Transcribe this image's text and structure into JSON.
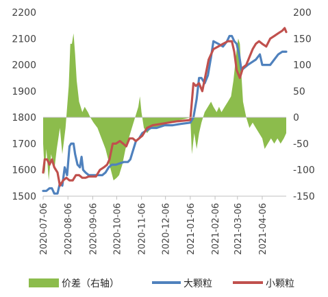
{
  "chart_data": {
    "type": "line",
    "title": "",
    "xlabel": "",
    "ylabel": "",
    "y_left": {
      "min": 1500,
      "max": 2200,
      "ticks": [
        1500,
        1600,
        1700,
        1800,
        1900,
        2000,
        2100,
        2200
      ]
    },
    "y_right": {
      "min": -150,
      "max": 200,
      "ticks": [
        -150,
        -100,
        -50,
        0,
        50,
        100,
        150,
        200
      ]
    },
    "x_range": [
      "2020-07-06",
      "2021-05-06"
    ],
    "x_ticks": [
      "2020-07-06",
      "2020-08-06",
      "2020-09-06",
      "2020-10-06",
      "2020-11-06",
      "2020-12-06",
      "2021-01-06",
      "2021-02-06",
      "2021-03-06",
      "2021-04-06"
    ],
    "legend": {
      "position": "bottom"
    },
    "colors": {
      "spread": "#8cbc4c",
      "large": "#4f81bd",
      "small": "#c0504d"
    },
    "series": [
      {
        "name": "价差（右轴）",
        "axis": "right",
        "kind": "area",
        "points": [
          [
            "2020-07-06",
            -50
          ],
          [
            "2020-07-08",
            -110
          ],
          [
            "2020-07-10",
            -60
          ],
          [
            "2020-07-13",
            -120
          ],
          [
            "2020-07-16",
            -70
          ],
          [
            "2020-07-20",
            -100
          ],
          [
            "2020-07-23",
            -60
          ],
          [
            "2020-07-27",
            -20
          ],
          [
            "2020-07-30",
            -70
          ],
          [
            "2020-08-03",
            -20
          ],
          [
            "2020-08-07",
            60
          ],
          [
            "2020-08-09",
            140
          ],
          [
            "2020-08-11",
            140
          ],
          [
            "2020-08-13",
            160
          ],
          [
            "2020-08-15",
            120
          ],
          [
            "2020-08-17",
            70
          ],
          [
            "2020-08-20",
            30
          ],
          [
            "2020-08-24",
            10
          ],
          [
            "2020-08-27",
            20
          ],
          [
            "2020-08-31",
            10
          ],
          [
            "2020-09-03",
            0
          ],
          [
            "2020-09-07",
            -10
          ],
          [
            "2020-09-12",
            -20
          ],
          [
            "2020-09-17",
            -40
          ],
          [
            "2020-09-22",
            -60
          ],
          [
            "2020-09-27",
            -90
          ],
          [
            "2020-10-02",
            -120
          ],
          [
            "2020-10-06",
            -115
          ],
          [
            "2020-10-09",
            -110
          ],
          [
            "2020-10-13",
            -90
          ],
          [
            "2020-10-17",
            -60
          ],
          [
            "2020-10-21",
            -40
          ],
          [
            "2020-10-25",
            -20
          ],
          [
            "2020-10-29",
            0
          ],
          [
            "2020-11-02",
            20
          ],
          [
            "2020-11-04",
            40
          ],
          [
            "2020-11-06",
            10
          ],
          [
            "2020-11-09",
            -20
          ],
          [
            "2020-11-13",
            -30
          ],
          [
            "2020-11-18",
            -20
          ],
          [
            "2020-11-25",
            -20
          ],
          [
            "2020-12-02",
            -15
          ],
          [
            "2020-12-09",
            -10
          ],
          [
            "2020-12-16",
            -8
          ],
          [
            "2020-12-23",
            -5
          ],
          [
            "2020-12-30",
            -3
          ],
          [
            "2021-01-06",
            0
          ],
          [
            "2021-01-08",
            -70
          ],
          [
            "2021-01-11",
            -30
          ],
          [
            "2021-01-14",
            -60
          ],
          [
            "2021-01-17",
            -30
          ],
          [
            "2021-01-20",
            -10
          ],
          [
            "2021-01-24",
            10
          ],
          [
            "2021-01-28",
            20
          ],
          [
            "2021-02-01",
            30
          ],
          [
            "2021-02-04",
            20
          ],
          [
            "2021-02-08",
            10
          ],
          [
            "2021-02-11",
            20
          ],
          [
            "2021-02-14",
            10
          ],
          [
            "2021-02-18",
            20
          ],
          [
            "2021-02-22",
            30
          ],
          [
            "2021-02-26",
            40
          ],
          [
            "2021-03-01",
            70
          ],
          [
            "2021-03-03",
            100
          ],
          [
            "2021-03-05",
            130
          ],
          [
            "2021-03-07",
            150
          ],
          [
            "2021-03-09",
            140
          ],
          [
            "2021-03-11",
            80
          ],
          [
            "2021-03-13",
            30
          ],
          [
            "2021-03-17",
            0
          ],
          [
            "2021-03-21",
            -20
          ],
          [
            "2021-03-25",
            -10
          ],
          [
            "2021-03-29",
            -20
          ],
          [
            "2021-04-02",
            -30
          ],
          [
            "2021-04-06",
            -40
          ],
          [
            "2021-04-09",
            -60
          ],
          [
            "2021-04-13",
            -50
          ],
          [
            "2021-04-17",
            -40
          ],
          [
            "2021-04-21",
            -50
          ],
          [
            "2021-04-25",
            -40
          ],
          [
            "2021-04-29",
            -50
          ],
          [
            "2021-05-03",
            -40
          ],
          [
            "2021-05-06",
            -30
          ]
        ]
      },
      {
        "name": "大颗粒",
        "axis": "left",
        "kind": "line",
        "points": [
          [
            "2020-07-06",
            1520
          ],
          [
            "2020-07-10",
            1520
          ],
          [
            "2020-07-14",
            1530
          ],
          [
            "2020-07-17",
            1530
          ],
          [
            "2020-07-20",
            1510
          ],
          [
            "2020-07-24",
            1510
          ],
          [
            "2020-07-27",
            1550
          ],
          [
            "2020-07-30",
            1540
          ],
          [
            "2020-08-02",
            1610
          ],
          [
            "2020-08-05",
            1580
          ],
          [
            "2020-08-08",
            1690
          ],
          [
            "2020-08-10",
            1700
          ],
          [
            "2020-08-13",
            1700
          ],
          [
            "2020-08-15",
            1660
          ],
          [
            "2020-08-18",
            1620
          ],
          [
            "2020-08-21",
            1610
          ],
          [
            "2020-08-23",
            1650
          ],
          [
            "2020-08-25",
            1600
          ],
          [
            "2020-08-28",
            1590
          ],
          [
            "2020-09-01",
            1580
          ],
          [
            "2020-09-04",
            1580
          ],
          [
            "2020-09-09",
            1580
          ],
          [
            "2020-09-14",
            1580
          ],
          [
            "2020-09-18",
            1580
          ],
          [
            "2020-09-22",
            1590
          ],
          [
            "2020-09-26",
            1610
          ],
          [
            "2020-09-30",
            1620
          ],
          [
            "2020-10-05",
            1620
          ],
          [
            "2020-10-10",
            1625
          ],
          [
            "2020-10-15",
            1630
          ],
          [
            "2020-10-20",
            1630
          ],
          [
            "2020-10-23",
            1640
          ],
          [
            "2020-10-26",
            1670
          ],
          [
            "2020-10-30",
            1710
          ],
          [
            "2020-11-03",
            1720
          ],
          [
            "2020-11-07",
            1740
          ],
          [
            "2020-11-12",
            1750
          ],
          [
            "2020-11-18",
            1760
          ],
          [
            "2020-11-25",
            1760
          ],
          [
            "2020-12-05",
            1770
          ],
          [
            "2020-12-15",
            1770
          ],
          [
            "2020-12-25",
            1775
          ],
          [
            "2021-01-06",
            1780
          ],
          [
            "2021-01-10",
            1800
          ],
          [
            "2021-01-14",
            1870
          ],
          [
            "2021-01-17",
            1950
          ],
          [
            "2021-01-20",
            1950
          ],
          [
            "2021-01-24",
            1930
          ],
          [
            "2021-01-28",
            1960
          ],
          [
            "2021-02-01",
            2030
          ],
          [
            "2021-02-04",
            2090
          ],
          [
            "2021-02-10",
            2080
          ],
          [
            "2021-02-16",
            2070
          ],
          [
            "2021-02-21",
            2090
          ],
          [
            "2021-02-24",
            2110
          ],
          [
            "2021-02-27",
            2110
          ],
          [
            "2021-03-02",
            2090
          ],
          [
            "2021-03-05",
            2080
          ],
          [
            "2021-03-08",
            2040
          ],
          [
            "2021-03-11",
            1980
          ],
          [
            "2021-03-15",
            1990
          ],
          [
            "2021-03-19",
            2000
          ],
          [
            "2021-03-24",
            2010
          ],
          [
            "2021-03-29",
            2020
          ],
          [
            "2021-04-03",
            2040
          ],
          [
            "2021-04-06",
            2000
          ],
          [
            "2021-04-11",
            2000
          ],
          [
            "2021-04-16",
            2000
          ],
          [
            "2021-04-21",
            2020
          ],
          [
            "2021-04-26",
            2040
          ],
          [
            "2021-05-01",
            2050
          ],
          [
            "2021-05-06",
            2050
          ]
        ]
      },
      {
        "name": "小颗粒",
        "axis": "left",
        "kind": "line",
        "points": [
          [
            "2020-07-06",
            1590
          ],
          [
            "2020-07-08",
            1640
          ],
          [
            "2020-07-11",
            1640
          ],
          [
            "2020-07-14",
            1620
          ],
          [
            "2020-07-17",
            1640
          ],
          [
            "2020-07-20",
            1610
          ],
          [
            "2020-07-24",
            1590
          ],
          [
            "2020-07-27",
            1540
          ],
          [
            "2020-07-31",
            1560
          ],
          [
            "2020-08-04",
            1570
          ],
          [
            "2020-08-08",
            1560
          ],
          [
            "2020-08-12",
            1560
          ],
          [
            "2020-08-16",
            1580
          ],
          [
            "2020-08-20",
            1580
          ],
          [
            "2020-08-24",
            1570
          ],
          [
            "2020-08-28",
            1570
          ],
          [
            "2020-09-01",
            1575
          ],
          [
            "2020-09-05",
            1575
          ],
          [
            "2020-09-10",
            1575
          ],
          [
            "2020-09-15",
            1600
          ],
          [
            "2020-09-20",
            1610
          ],
          [
            "2020-09-24",
            1620
          ],
          [
            "2020-09-27",
            1640
          ],
          [
            "2020-10-01",
            1700
          ],
          [
            "2020-10-05",
            1700
          ],
          [
            "2020-10-10",
            1710
          ],
          [
            "2020-10-14",
            1700
          ],
          [
            "2020-10-18",
            1690
          ],
          [
            "2020-10-22",
            1720
          ],
          [
            "2020-10-26",
            1720
          ],
          [
            "2020-10-30",
            1710
          ],
          [
            "2020-11-03",
            1720
          ],
          [
            "2020-11-07",
            1730
          ],
          [
            "2020-11-13",
            1760
          ],
          [
            "2020-11-20",
            1770
          ],
          [
            "2020-11-30",
            1775
          ],
          [
            "2020-12-10",
            1780
          ],
          [
            "2020-12-20",
            1785
          ],
          [
            "2021-01-06",
            1790
          ],
          [
            "2021-01-10",
            1930
          ],
          [
            "2021-01-13",
            1920
          ],
          [
            "2021-01-17",
            1930
          ],
          [
            "2021-01-21",
            1900
          ],
          [
            "2021-01-25",
            1960
          ],
          [
            "2021-01-29",
            2020
          ],
          [
            "2021-02-04",
            2060
          ],
          [
            "2021-02-10",
            2070
          ],
          [
            "2021-02-16",
            2080
          ],
          [
            "2021-02-22",
            2090
          ],
          [
            "2021-02-27",
            2090
          ],
          [
            "2021-03-02",
            2050
          ],
          [
            "2021-03-05",
            1980
          ],
          [
            "2021-03-09",
            1950
          ],
          [
            "2021-03-13",
            1990
          ],
          [
            "2021-03-17",
            2000
          ],
          [
            "2021-03-21",
            2030
          ],
          [
            "2021-03-25",
            2060
          ],
          [
            "2021-03-29",
            2080
          ],
          [
            "2021-04-02",
            2090
          ],
          [
            "2021-04-06",
            2080
          ],
          [
            "2021-04-11",
            2070
          ],
          [
            "2021-04-16",
            2100
          ],
          [
            "2021-04-21",
            2110
          ],
          [
            "2021-04-26",
            2120
          ],
          [
            "2021-05-01",
            2130
          ],
          [
            "2021-05-04",
            2140
          ],
          [
            "2021-05-06",
            2125
          ]
        ]
      }
    ]
  }
}
